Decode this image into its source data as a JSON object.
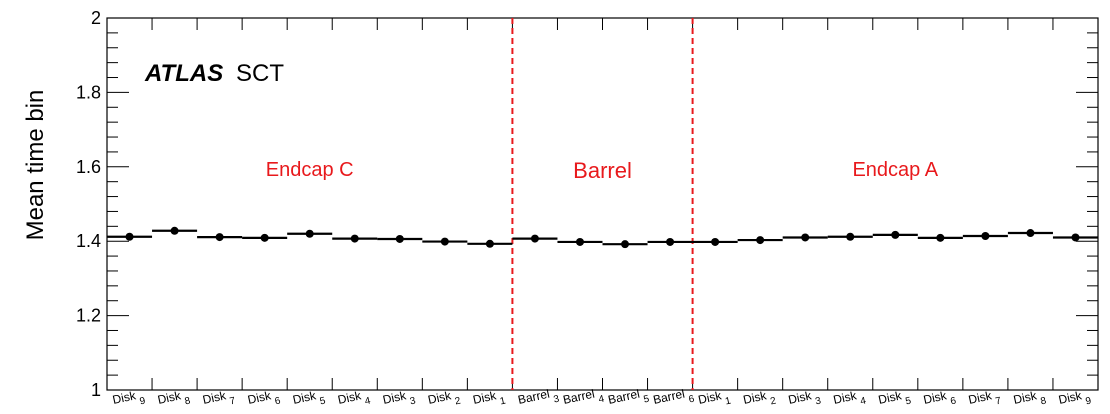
{
  "chart_data": {
    "type": "scatter",
    "ylabel": "Mean time bin",
    "ylim": [
      1,
      2
    ],
    "yticks": [
      "1",
      "1.2",
      "1.4",
      "1.6",
      "1.8",
      "2"
    ],
    "ytick_values": [
      1,
      1.2,
      1.4,
      1.6,
      1.8,
      2
    ],
    "categories": [
      "Disk 9",
      "Disk 8",
      "Disk 7",
      "Disk 6",
      "Disk 5",
      "Disk 4",
      "Disk 3",
      "Disk 2",
      "Disk 1",
      "Barrel 3",
      "Barrel 4",
      "Barrel 5",
      "Barrel 6",
      "Disk 1",
      "Disk 2",
      "Disk 3",
      "Disk 4",
      "Disk 5",
      "Disk 6",
      "Disk 7",
      "Disk 8",
      "Disk 9"
    ],
    "values": [
      1.412,
      1.428,
      1.411,
      1.409,
      1.42,
      1.407,
      1.406,
      1.399,
      1.393,
      1.407,
      1.398,
      1.392,
      1.398,
      1.398,
      1.403,
      1.41,
      1.412,
      1.417,
      1.409,
      1.414,
      1.422,
      1.41
    ],
    "experiment": "ATLAS",
    "detector": "SCT",
    "regions": [
      {
        "label": "Endcap C",
        "from": 0,
        "to": 9
      },
      {
        "label": "Barrel",
        "from": 9,
        "to": 13
      },
      {
        "label": "Endcap A",
        "from": 13,
        "to": 22
      }
    ],
    "divider_color": "#e8191c",
    "marker_color": "#000000",
    "grid": false
  }
}
